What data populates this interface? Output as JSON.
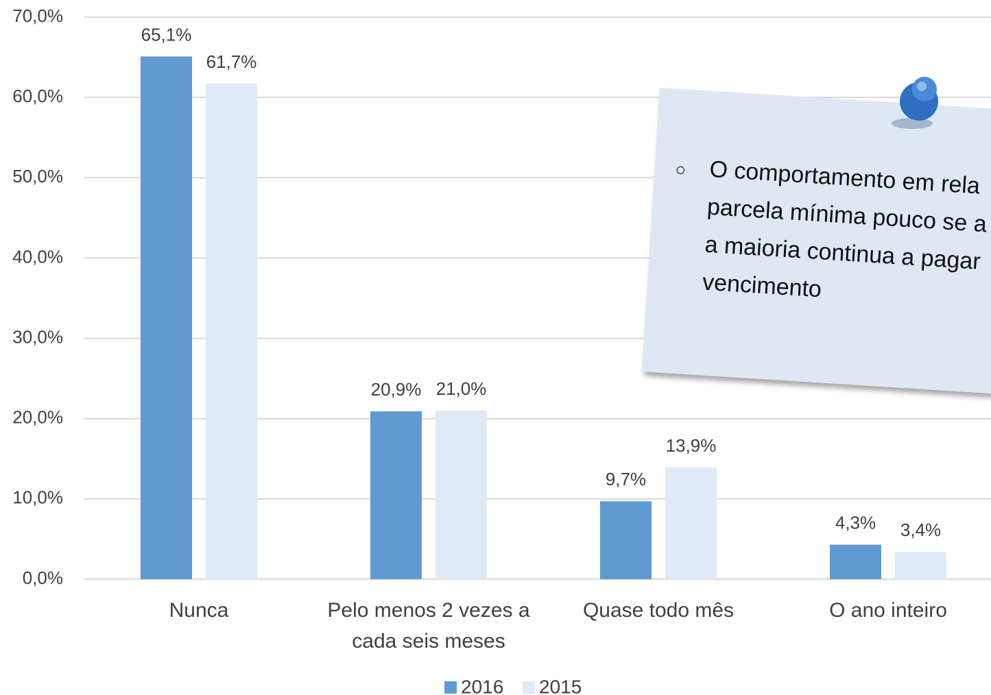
{
  "chart_data": {
    "type": "bar",
    "categories": [
      "Nunca",
      "Pelo menos 2 vezes a cada seis meses",
      "Quase todo mês",
      "O ano inteiro"
    ],
    "series": [
      {
        "name": "2016",
        "color": "#5f9bd0",
        "values": [
          65.1,
          20.9,
          9.7,
          4.3
        ],
        "value_labels": [
          "65,1%",
          "20,9%",
          "9,7%",
          "4,3%"
        ]
      },
      {
        "name": "2015",
        "color": "#deeaf6",
        "values": [
          61.7,
          21.0,
          13.9,
          3.4
        ],
        "value_labels": [
          "61,7%",
          "21,0%",
          "13,9%",
          "3,4%"
        ]
      }
    ],
    "ylim": [
      0,
      70
    ],
    "yticks": [
      {
        "value": 0,
        "label": "0,0%"
      },
      {
        "value": 10,
        "label": "10,0%"
      },
      {
        "value": 20,
        "label": "20,0%"
      },
      {
        "value": 30,
        "label": "30,0%"
      },
      {
        "value": 40,
        "label": "40,0%"
      },
      {
        "value": 50,
        "label": "50,0%"
      },
      {
        "value": 60,
        "label": "60,0%"
      },
      {
        "value": 70,
        "label": "70,0%"
      }
    ],
    "grid": true,
    "legend": "bottom",
    "annotation": [
      "O comportamento em rela",
      "parcela mínima pouco se a",
      "a maioria continua a pagar",
      "vencimento"
    ]
  }
}
